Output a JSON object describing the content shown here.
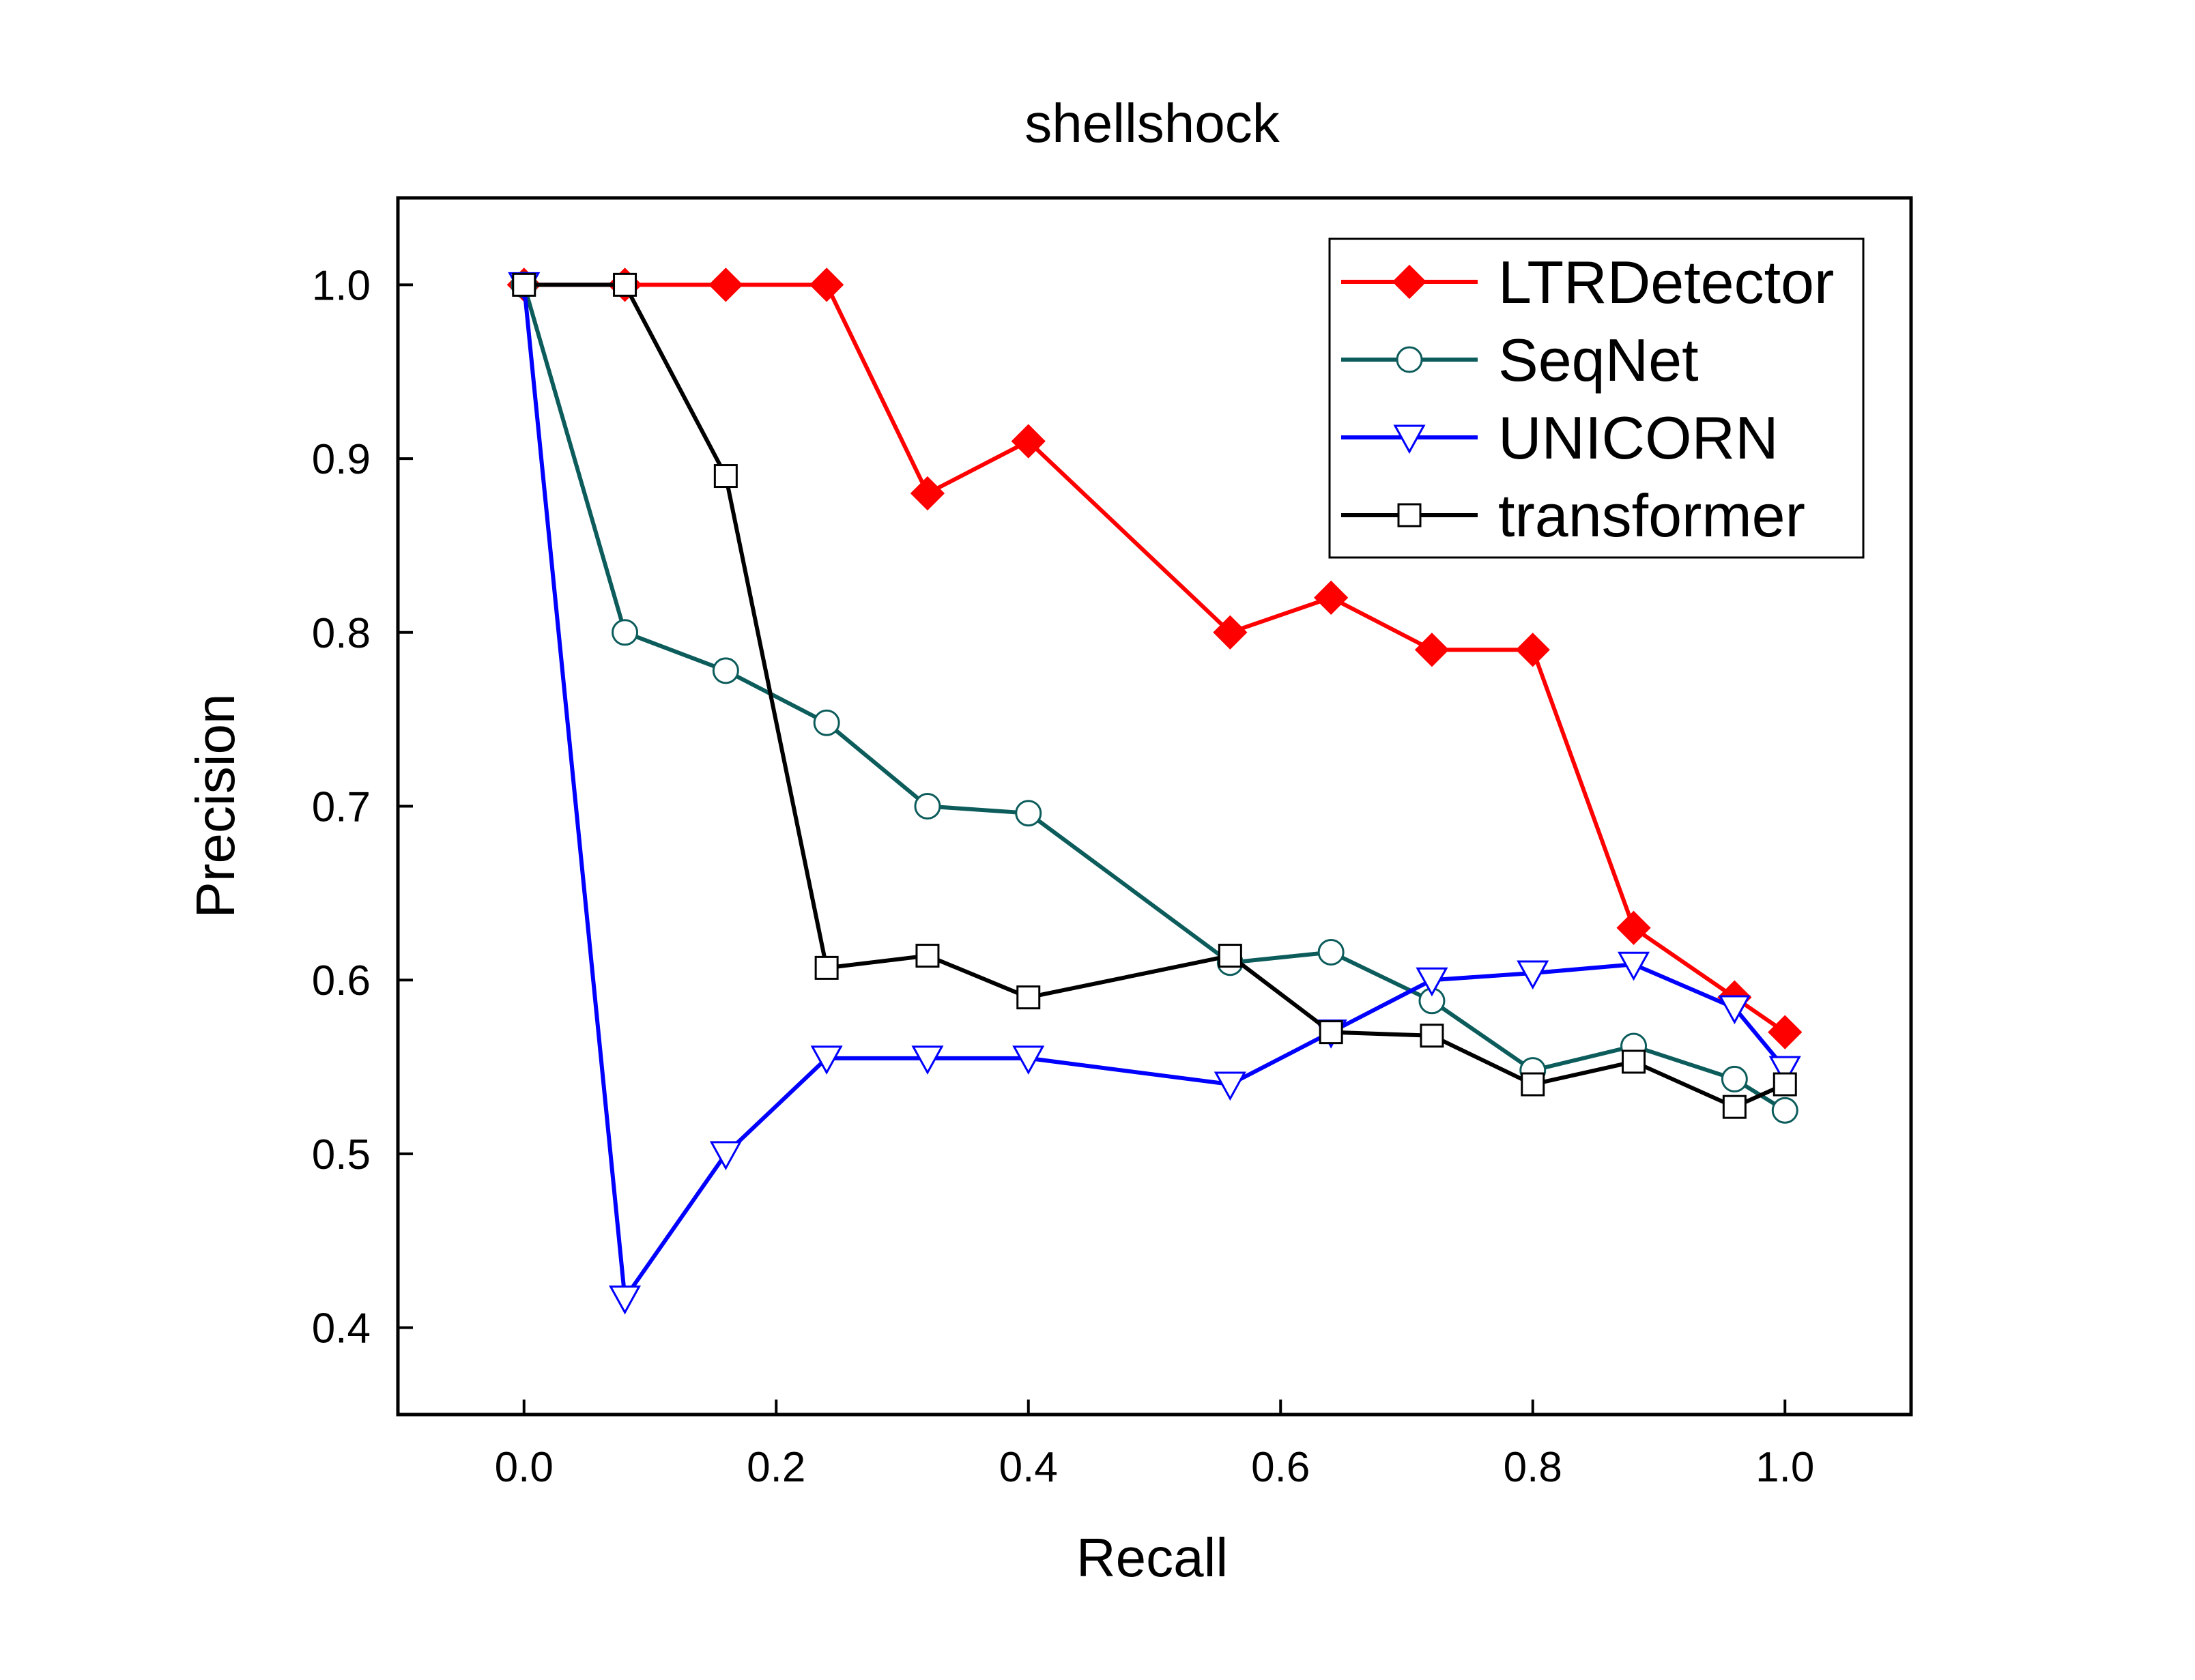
{
  "chart_data": {
    "type": "line",
    "title": "shellshock",
    "xlabel": "Recall",
    "ylabel": "Precision",
    "xlim": [
      -0.1,
      1.1
    ],
    "ylim": [
      0.35,
      1.05
    ],
    "xticks": [
      0.0,
      0.2,
      0.4,
      0.6,
      0.8,
      1.0
    ],
    "xtick_labels": [
      "0.0",
      "0.2",
      "0.4",
      "0.6",
      "0.8",
      "1.0"
    ],
    "yticks": [
      0.4,
      0.5,
      0.6,
      0.7,
      0.8,
      0.9,
      1.0
    ],
    "ytick_labels": [
      "0.4",
      "0.5",
      "0.6",
      "0.7",
      "0.8",
      "0.9",
      "1.0"
    ],
    "grid": false,
    "legend_position": "top-right",
    "series": [
      {
        "name": "LTRDetector",
        "color": "#ff0000",
        "marker": "diamond",
        "marker_fill": "#ff0000",
        "x": [
          0.0,
          0.08,
          0.16,
          0.24,
          0.32,
          0.4,
          0.56,
          0.64,
          0.72,
          0.8,
          0.88,
          0.96,
          1.0
        ],
        "y": [
          1.0,
          1.0,
          1.0,
          1.0,
          0.88,
          0.91,
          0.8,
          0.82,
          0.79,
          0.79,
          0.63,
          0.59,
          0.57
        ]
      },
      {
        "name": "SeqNet",
        "color": "#0d5c5c",
        "marker": "circle",
        "marker_fill": "#ffffff",
        "x": [
          0.0,
          0.08,
          0.16,
          0.24,
          0.32,
          0.4,
          0.56,
          0.64,
          0.72,
          0.8,
          0.88,
          0.96,
          1.0
        ],
        "y": [
          1.0,
          0.8,
          0.778,
          0.748,
          0.7,
          0.696,
          0.61,
          0.616,
          0.588,
          0.548,
          0.562,
          0.543,
          0.525
        ]
      },
      {
        "name": "UNICORN",
        "color": "#0000ff",
        "marker": "triangle-down",
        "marker_fill": "#ffffff",
        "x": [
          0.0,
          0.08,
          0.16,
          0.24,
          0.32,
          0.4,
          0.56,
          0.64,
          0.72,
          0.8,
          0.88,
          0.96,
          1.0
        ],
        "y": [
          1.0,
          0.417,
          0.5,
          0.555,
          0.555,
          0.555,
          0.54,
          0.57,
          0.6,
          0.604,
          0.609,
          0.584,
          0.549
        ]
      },
      {
        "name": "transformer",
        "color": "#000000",
        "marker": "square",
        "marker_fill": "#ffffff",
        "x": [
          0.0,
          0.08,
          0.16,
          0.24,
          0.32,
          0.4,
          0.56,
          0.64,
          0.72,
          0.8,
          0.88,
          0.96,
          1.0
        ],
        "y": [
          1.0,
          1.0,
          0.89,
          0.607,
          0.614,
          0.59,
          0.614,
          0.57,
          0.568,
          0.54,
          0.553,
          0.527,
          0.54
        ]
      }
    ]
  }
}
